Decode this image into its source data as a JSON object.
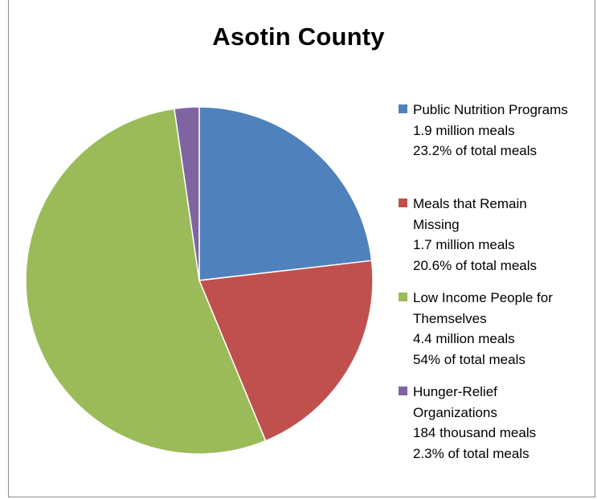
{
  "chart_data": {
    "type": "pie",
    "title": "Asotin County",
    "slices": [
      {
        "label": "Public Nutrition Programs",
        "amount_text": "1.9 million meals",
        "share_text": "23.2% of total meals",
        "value": 23.2,
        "color": "#4f81bd"
      },
      {
        "label": "Meals that Remain Missing",
        "amount_text": "1.7 million meals",
        "share_text": "20.6% of total meals",
        "value": 20.6,
        "color": "#c0504d"
      },
      {
        "label": "Low Income People for Themselves",
        "amount_text": "4.4 million meals",
        "share_text": "54% of total meals",
        "value": 54.0,
        "color": "#9bbb59"
      },
      {
        "label": "Hunger-Relief Organizations",
        "amount_text": "184 thousand meals",
        "share_text": "2.3% of total meals",
        "value": 2.3,
        "color": "#8064a2"
      }
    ],
    "legend_position": "right"
  }
}
